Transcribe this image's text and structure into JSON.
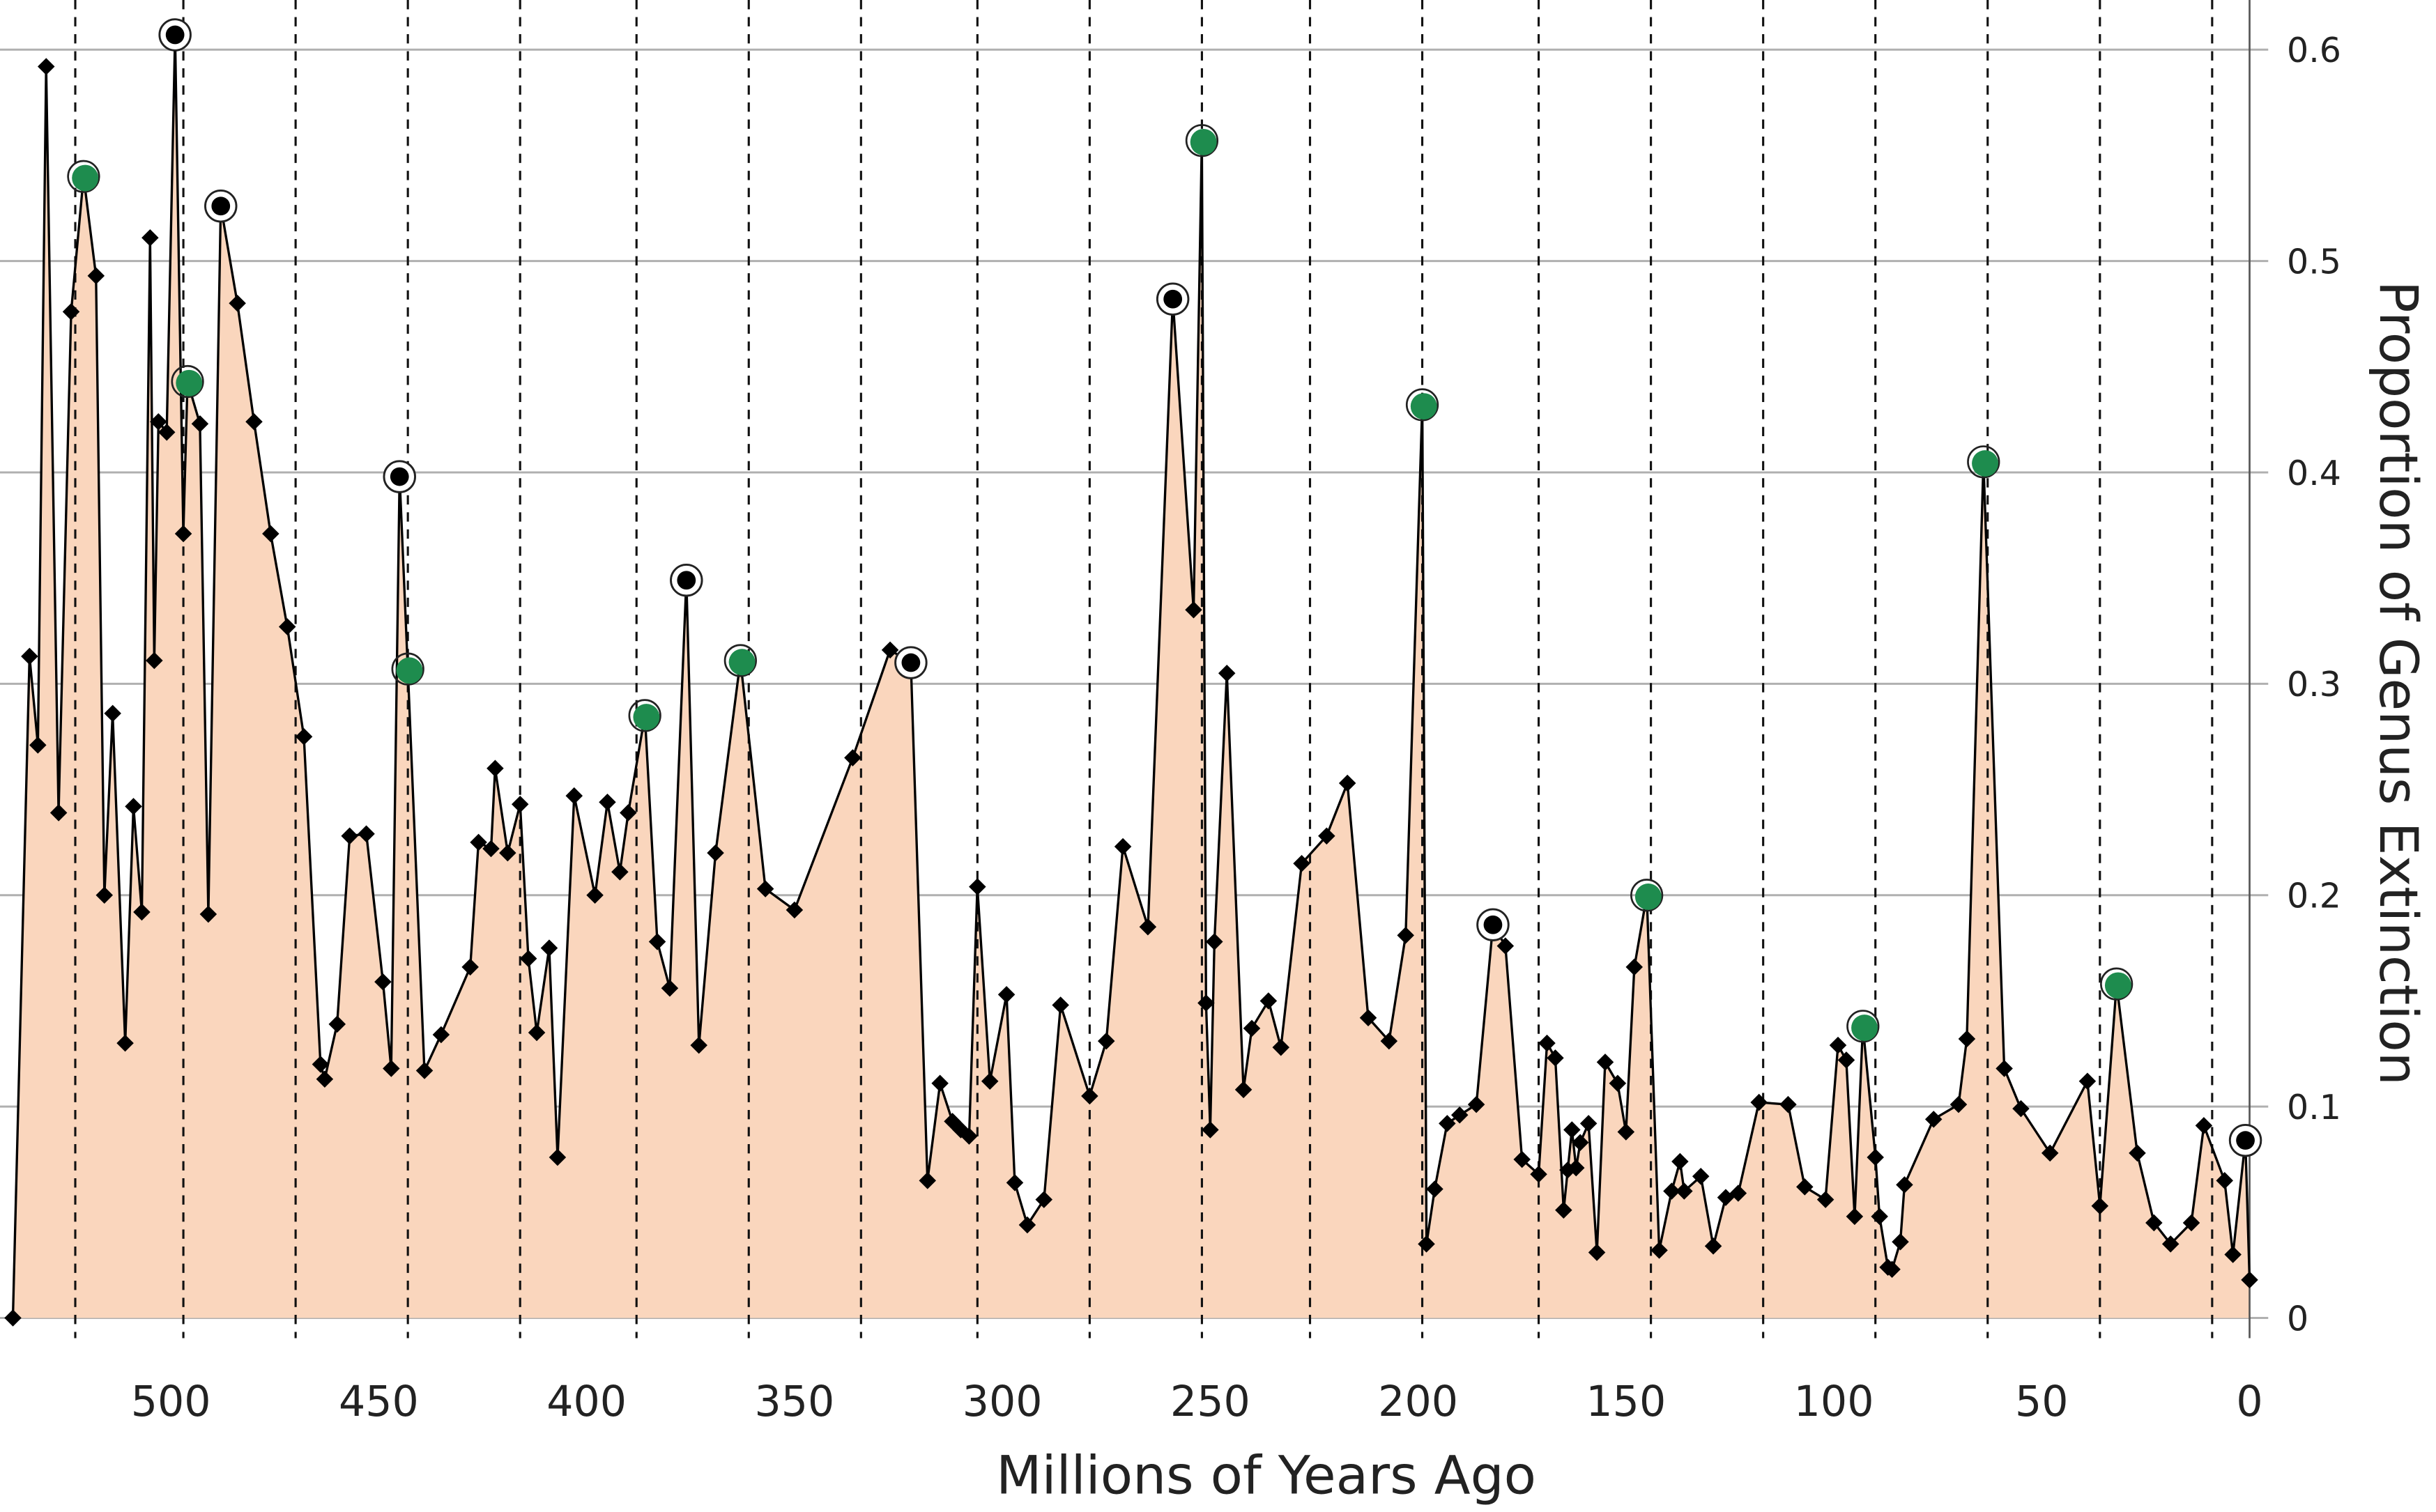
{
  "chart_data": {
    "type": "area",
    "title": "",
    "xlabel": "Millions of Years Ago",
    "ylabel": "Proportion of Genus Extinction",
    "xlim": [
      540,
      0
    ],
    "ylim": [
      0,
      0.62
    ],
    "x_ticks": [
      "500",
      "450",
      "400",
      "350",
      "300",
      "250",
      "200",
      "150",
      "100",
      "50",
      "0"
    ],
    "x_tick_values": [
      500,
      450,
      400,
      350,
      300,
      250,
      200,
      150,
      100,
      50,
      0
    ],
    "y_ticks": [
      "0",
      "0.1",
      "0.2",
      "0.3",
      "0.4",
      "0.5",
      "0.6"
    ],
    "y_tick_values": [
      0,
      0.1,
      0.2,
      0.3,
      0.4,
      0.5,
      0.6
    ],
    "grid": "horizontal",
    "boundary_lines_ma": [
      523,
      497,
      470,
      443,
      416,
      388,
      361,
      334,
      306,
      279,
      252,
      226,
      199,
      171,
      144,
      117,
      90,
      63,
      36,
      9
    ],
    "colors": {
      "fill": "#fad6bd",
      "line": "#000000",
      "green_marker": "#1e8c4e",
      "grid": "#b0b0b0"
    },
    "marker_legend": {
      "d": "diamond",
      "g": "green circle",
      "c": "ringed circle"
    },
    "points": [
      [
        538,
        0.0,
        "d"
      ],
      [
        534,
        0.313,
        "d"
      ],
      [
        532,
        0.271,
        "d"
      ],
      [
        530,
        0.592,
        "d"
      ],
      [
        527,
        0.239,
        "d"
      ],
      [
        524,
        0.476,
        "d"
      ],
      [
        521,
        0.54,
        "g"
      ],
      [
        518,
        0.493,
        "d"
      ],
      [
        516,
        0.2,
        "d"
      ],
      [
        514,
        0.286,
        "d"
      ],
      [
        511,
        0.13,
        "d"
      ],
      [
        509,
        0.242,
        "d"
      ],
      [
        507,
        0.192,
        "d"
      ],
      [
        505,
        0.511,
        "d"
      ],
      [
        504,
        0.311,
        "d"
      ],
      [
        503,
        0.424,
        "d"
      ],
      [
        501,
        0.419,
        "d"
      ],
      [
        499,
        0.607,
        "c"
      ],
      [
        497,
        0.371,
        "d"
      ],
      [
        496,
        0.443,
        "g"
      ],
      [
        493,
        0.423,
        "d"
      ],
      [
        491,
        0.191,
        "d"
      ],
      [
        488,
        0.526,
        "c"
      ],
      [
        484,
        0.48,
        "d"
      ],
      [
        480,
        0.424,
        "d"
      ],
      [
        476,
        0.371,
        "d"
      ],
      [
        472,
        0.327,
        "d"
      ],
      [
        468,
        0.275,
        "d"
      ],
      [
        464,
        0.12,
        "d"
      ],
      [
        463,
        0.113,
        "d"
      ],
      [
        460,
        0.139,
        "d"
      ],
      [
        457,
        0.228,
        "d"
      ],
      [
        453,
        0.229,
        "d"
      ],
      [
        449,
        0.159,
        "d"
      ],
      [
        447,
        0.118,
        "d"
      ],
      [
        445,
        0.398,
        "c"
      ],
      [
        443,
        0.307,
        "g"
      ],
      [
        439,
        0.117,
        "d"
      ],
      [
        435,
        0.134,
        "d"
      ],
      [
        428,
        0.166,
        "d"
      ],
      [
        426,
        0.225,
        "d"
      ],
      [
        423,
        0.222,
        "d"
      ],
      [
        422,
        0.26,
        "d"
      ],
      [
        419,
        0.22,
        "d"
      ],
      [
        416,
        0.243,
        "d"
      ],
      [
        414,
        0.17,
        "d"
      ],
      [
        412,
        0.135,
        "d"
      ],
      [
        409,
        0.175,
        "d"
      ],
      [
        407,
        0.076,
        "d"
      ],
      [
        403,
        0.247,
        "d"
      ],
      [
        398,
        0.2,
        "d"
      ],
      [
        395,
        0.244,
        "d"
      ],
      [
        392,
        0.211,
        "d"
      ],
      [
        390,
        0.239,
        "d"
      ],
      [
        386,
        0.285,
        "g"
      ],
      [
        383,
        0.178,
        "d"
      ],
      [
        380,
        0.156,
        "d"
      ],
      [
        376,
        0.349,
        "c"
      ],
      [
        373,
        0.129,
        "d"
      ],
      [
        369,
        0.22,
        "d"
      ],
      [
        363,
        0.311,
        "g"
      ],
      [
        357,
        0.203,
        "d"
      ],
      [
        350,
        0.193,
        "d"
      ],
      [
        336,
        0.265,
        "d"
      ],
      [
        327,
        0.316,
        "d"
      ],
      [
        322,
        0.31,
        "c"
      ],
      [
        318,
        0.065,
        "d"
      ],
      [
        315,
        0.111,
        "d"
      ],
      [
        312,
        0.093,
        "d"
      ],
      [
        310,
        0.089,
        "d"
      ],
      [
        308,
        0.086,
        "d"
      ],
      [
        306,
        0.204,
        "d"
      ],
      [
        303,
        0.112,
        "d"
      ],
      [
        299,
        0.153,
        "d"
      ],
      [
        297,
        0.064,
        "d"
      ],
      [
        294,
        0.044,
        "d"
      ],
      [
        290,
        0.056,
        "d"
      ],
      [
        286,
        0.148,
        "d"
      ],
      [
        279,
        0.105,
        "d"
      ],
      [
        275,
        0.131,
        "d"
      ],
      [
        271,
        0.223,
        "d"
      ],
      [
        265,
        0.185,
        "d"
      ],
      [
        259,
        0.482,
        "c"
      ],
      [
        254,
        0.335,
        "d"
      ],
      [
        252,
        0.557,
        "g"
      ],
      [
        251,
        0.149,
        "d"
      ],
      [
        250,
        0.089,
        "d"
      ],
      [
        249,
        0.178,
        "d"
      ],
      [
        246,
        0.305,
        "d"
      ],
      [
        242,
        0.108,
        "d"
      ],
      [
        240,
        0.137,
        "d"
      ],
      [
        236,
        0.15,
        "d"
      ],
      [
        233,
        0.128,
        "d"
      ],
      [
        228,
        0.215,
        "d"
      ],
      [
        222,
        0.228,
        "d"
      ],
      [
        217,
        0.253,
        "d"
      ],
      [
        212,
        0.142,
        "d"
      ],
      [
        207,
        0.131,
        "d"
      ],
      [
        203,
        0.181,
        "d"
      ],
      [
        199,
        0.432,
        "g"
      ],
      [
        198,
        0.035,
        "d"
      ],
      [
        196,
        0.061,
        "d"
      ],
      [
        193,
        0.092,
        "d"
      ],
      [
        190,
        0.096,
        "d"
      ],
      [
        186,
        0.101,
        "d"
      ],
      [
        182,
        0.186,
        "c"
      ],
      [
        179,
        0.176,
        "d"
      ],
      [
        175,
        0.075,
        "d"
      ],
      [
        171,
        0.068,
        "d"
      ],
      [
        169,
        0.13,
        "d"
      ],
      [
        167,
        0.123,
        "d"
      ],
      [
        165,
        0.051,
        "d"
      ],
      [
        164,
        0.07,
        "d"
      ],
      [
        163,
        0.089,
        "d"
      ],
      [
        162,
        0.071,
        "d"
      ],
      [
        161,
        0.083,
        "d"
      ],
      [
        159,
        0.092,
        "d"
      ],
      [
        157,
        0.031,
        "d"
      ],
      [
        155,
        0.121,
        "d"
      ],
      [
        152,
        0.111,
        "d"
      ],
      [
        150,
        0.088,
        "d"
      ],
      [
        148,
        0.166,
        "d"
      ],
      [
        145,
        0.2,
        "g"
      ],
      [
        142,
        0.032,
        "d"
      ],
      [
        139,
        0.06,
        "d"
      ],
      [
        137,
        0.074,
        "d"
      ],
      [
        136,
        0.06,
        "d"
      ],
      [
        132,
        0.067,
        "d"
      ],
      [
        129,
        0.034,
        "d"
      ],
      [
        126,
        0.057,
        "d"
      ],
      [
        123,
        0.059,
        "d"
      ],
      [
        118,
        0.102,
        "d"
      ],
      [
        111,
        0.101,
        "d"
      ],
      [
        107,
        0.062,
        "d"
      ],
      [
        102,
        0.056,
        "d"
      ],
      [
        99,
        0.129,
        "d"
      ],
      [
        97,
        0.122,
        "d"
      ],
      [
        95,
        0.048,
        "d"
      ],
      [
        93,
        0.138,
        "g"
      ],
      [
        90,
        0.076,
        "d"
      ],
      [
        89,
        0.048,
        "d"
      ],
      [
        87,
        0.024,
        "d"
      ],
      [
        86,
        0.023,
        "d"
      ],
      [
        84,
        0.036,
        "d"
      ],
      [
        83,
        0.063,
        "d"
      ],
      [
        76,
        0.094,
        "d"
      ],
      [
        70,
        0.101,
        "d"
      ],
      [
        68,
        0.132,
        "d"
      ],
      [
        64,
        0.405,
        "g"
      ],
      [
        59,
        0.118,
        "d"
      ],
      [
        55,
        0.099,
        "d"
      ],
      [
        48,
        0.078,
        "d"
      ],
      [
        39,
        0.112,
        "d"
      ],
      [
        36,
        0.053,
        "d"
      ],
      [
        32,
        0.158,
        "g"
      ],
      [
        27,
        0.078,
        "d"
      ],
      [
        23,
        0.045,
        "d"
      ],
      [
        19,
        0.035,
        "d"
      ],
      [
        14,
        0.045,
        "d"
      ],
      [
        11,
        0.091,
        "d"
      ],
      [
        6,
        0.065,
        "d"
      ],
      [
        4,
        0.03,
        "d"
      ],
      [
        1,
        0.084,
        "c"
      ],
      [
        0,
        0.018,
        "d"
      ]
    ]
  }
}
